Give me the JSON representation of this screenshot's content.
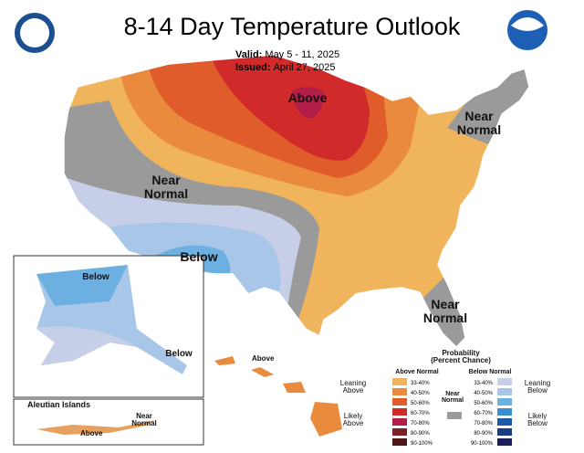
{
  "header": {
    "title": "8-14 Day Temperature Outlook",
    "valid_label": "Valid:",
    "valid": "May 5 - 11, 2025",
    "issued_label": "Issued:",
    "issued": "April 27, 2025"
  },
  "map_labels": [
    "Above",
    "Near Normal",
    "Near Normal",
    "Below",
    "Near Normal",
    "Below",
    "Below",
    "Above",
    "Aleutian Islands",
    "Near Normal",
    "Above"
  ],
  "legend": {
    "title": "Probability (Percent Chance)",
    "above_heading": "Above Normal",
    "below_heading": "Below Normal",
    "above": [
      {
        "label": "33-40%",
        "color": "#f0b45c"
      },
      {
        "label": "40-50%",
        "color": "#e98a3c"
      },
      {
        "label": "50-60%",
        "color": "#e05c2a"
      },
      {
        "label": "60-70%",
        "color": "#d02a2a"
      },
      {
        "label": "70-80%",
        "color": "#b21e48"
      },
      {
        "label": "80-90%",
        "color": "#7e2028"
      },
      {
        "label": "90-100%",
        "color": "#501616"
      }
    ],
    "below": [
      {
        "label": "33-40%",
        "color": "#c6cee8"
      },
      {
        "label": "40-50%",
        "color": "#a8c6e8"
      },
      {
        "label": "50-60%",
        "color": "#6cb0e2"
      },
      {
        "label": "60-70%",
        "color": "#3a8ed2"
      },
      {
        "label": "70-80%",
        "color": "#1a5aa8"
      },
      {
        "label": "80-90%",
        "color": "#183c86"
      },
      {
        "label": "90-100%",
        "color": "#1a1e5c"
      }
    ],
    "near": {
      "label": "Near Normal",
      "color": "#9a9a9a"
    },
    "leaning_above": "Leaning Above",
    "likely_above": "Likely Above",
    "leaning_below": "Leaning Below",
    "likely_below": "Likely Below"
  }
}
